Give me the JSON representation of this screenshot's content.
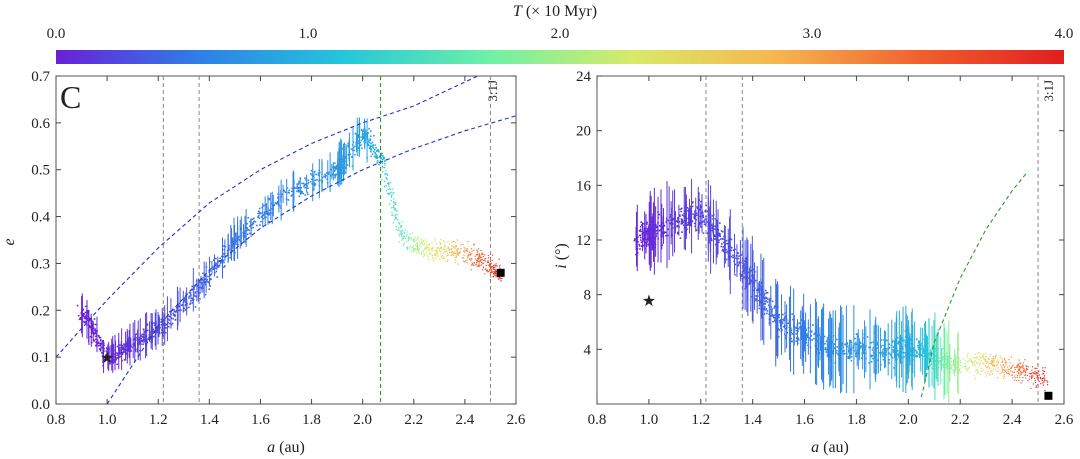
{
  "colorbar": {
    "title_italic": "T",
    "title_rest": " (× 10 Myr)",
    "ticks": [
      "0.0",
      "1.0",
      "2.0",
      "3.0",
      "4.0"
    ],
    "range": [
      0.0,
      4.0
    ],
    "colors": [
      "#6a1fd6",
      "#2f7fe8",
      "#25c6d9",
      "#6ef0a8",
      "#d8ea6a",
      "#f5b74f",
      "#f0602f",
      "#e01e1e"
    ]
  },
  "chart_data": [
    {
      "type": "scatter",
      "panel_letter": "C",
      "xlabel_italic": "a",
      "xlabel_rest": " (au)",
      "ylabel_italic": "e",
      "ylabel_rest": "",
      "xlim": [
        0.8,
        2.6
      ],
      "ylim": [
        0.0,
        0.7
      ],
      "xticks": [
        "0.8",
        "1.0",
        "1.2",
        "1.4",
        "1.6",
        "1.8",
        "2.0",
        "2.2",
        "2.4",
        "2.6"
      ],
      "yticks": [
        "0.0",
        "0.1",
        "0.2",
        "0.3",
        "0.4",
        "0.5",
        "0.6",
        "0.7"
      ],
      "resonance_label": "3:1J",
      "gray_lines_x": [
        1.22,
        1.36,
        2.5
      ],
      "green_line_x": 2.07,
      "blue_curves": [
        {
          "x": [
            0.8,
            1.0,
            1.2,
            1.4,
            1.6,
            1.8,
            2.0,
            2.2,
            2.45
          ],
          "y": [
            0.1,
            0.222,
            0.333,
            0.429,
            0.5,
            0.556,
            0.6,
            0.636,
            0.7
          ]
        },
        {
          "x": [
            1.0,
            1.2,
            1.4,
            1.6,
            1.8,
            2.0,
            2.2,
            2.4,
            2.6
          ],
          "y": [
            0.0,
            0.167,
            0.286,
            0.375,
            0.444,
            0.5,
            0.545,
            0.583,
            0.615
          ]
        }
      ],
      "track": [
        {
          "a": 0.9,
          "e": 0.2,
          "t": 0.0
        },
        {
          "a": 1.0,
          "e": 0.1,
          "t": 0.05
        },
        {
          "a": 1.1,
          "e": 0.13,
          "t": 0.12
        },
        {
          "a": 1.22,
          "e": 0.17,
          "t": 0.25
        },
        {
          "a": 1.36,
          "e": 0.25,
          "t": 0.38
        },
        {
          "a": 1.5,
          "e": 0.35,
          "t": 0.5
        },
        {
          "a": 1.7,
          "e": 0.45,
          "t": 0.62
        },
        {
          "a": 1.9,
          "e": 0.5,
          "t": 0.75
        },
        {
          "a": 2.0,
          "e": 0.58,
          "t": 0.85
        },
        {
          "a": 2.07,
          "e": 0.52,
          "t": 1.0
        },
        {
          "a": 2.15,
          "e": 0.36,
          "t": 1.6
        },
        {
          "a": 2.25,
          "e": 0.33,
          "t": 2.3
        },
        {
          "a": 2.35,
          "e": 0.33,
          "t": 2.8
        },
        {
          "a": 2.45,
          "e": 0.31,
          "t": 3.4
        },
        {
          "a": 2.54,
          "e": 0.28,
          "t": 4.0
        }
      ],
      "star": {
        "a": 1.0,
        "e": 0.1
      },
      "square": {
        "a": 2.54,
        "e": 0.28
      }
    },
    {
      "type": "scatter",
      "xlabel_italic": "a",
      "xlabel_rest": " (au)",
      "ylabel_italic": "i",
      "ylabel_rest": " (°)",
      "xlim": [
        0.8,
        2.6
      ],
      "ylim": [
        0,
        24
      ],
      "xticks": [
        "0.8",
        "1.0",
        "1.2",
        "1.4",
        "1.6",
        "1.8",
        "2.0",
        "2.2",
        "2.4",
        "2.6"
      ],
      "yticks": [
        "4",
        "8",
        "12",
        "16",
        "20",
        "24"
      ],
      "resonance_label": "3:1J",
      "gray_lines_x": [
        1.22,
        1.36,
        2.5
      ],
      "green_curve": {
        "x": [
          2.05,
          2.1,
          2.2,
          2.3,
          2.4,
          2.46
        ],
        "y": [
          0.5,
          4.5,
          9.2,
          12.8,
          15.6,
          17.0
        ]
      },
      "track": [
        {
          "a": 0.95,
          "i": 12,
          "t": 0.0
        },
        {
          "a": 1.05,
          "i": 13,
          "t": 0.1
        },
        {
          "a": 1.2,
          "i": 14,
          "t": 0.2
        },
        {
          "a": 1.36,
          "i": 10,
          "t": 0.3
        },
        {
          "a": 1.5,
          "i": 6,
          "t": 0.45
        },
        {
          "a": 1.7,
          "i": 4,
          "t": 0.65
        },
        {
          "a": 1.9,
          "i": 4,
          "t": 0.8
        },
        {
          "a": 2.05,
          "i": 4,
          "t": 1.0
        },
        {
          "a": 2.15,
          "i": 3,
          "t": 1.8
        },
        {
          "a": 2.3,
          "i": 3,
          "t": 2.6
        },
        {
          "a": 2.42,
          "i": 2.5,
          "t": 3.3
        },
        {
          "a": 2.53,
          "i": 2,
          "t": 4.0
        }
      ],
      "star": {
        "a": 1.0,
        "i": 7.6
      },
      "square": {
        "a": 2.54,
        "i": 0.6
      }
    }
  ]
}
